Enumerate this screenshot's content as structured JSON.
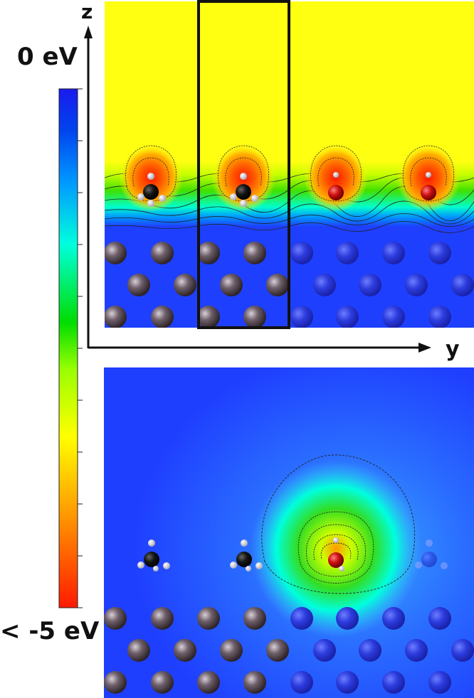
{
  "colorbar": {
    "top_label": "0 eV",
    "bottom_label": "< -5 eV",
    "colors": [
      "#ff1a00",
      "#ff9900",
      "#ffff00",
      "#99ff00",
      "#00dd00",
      "#00ffdd",
      "#0099ff",
      "#0044ee",
      "#1a1aee"
    ]
  },
  "axes": {
    "z_label": "z",
    "y_label": "y"
  },
  "colors": {
    "slab_blue": "#1f3fff",
    "vacuum_yellow": "#ffff12",
    "frame": "#111111"
  },
  "top_panel": {
    "molecules": [
      {
        "type": "methanium",
        "heavy_atom": "C"
      },
      {
        "type": "methanium",
        "heavy_atom": "C"
      },
      {
        "type": "water",
        "heavy_atom": "O"
      },
      {
        "type": "water",
        "heavy_atom": "O"
      }
    ]
  },
  "bottom_panel": {
    "molecules": [
      {
        "type": "methanium",
        "heavy_atom": "C"
      },
      {
        "type": "methanium",
        "heavy_atom": "C"
      },
      {
        "type": "water",
        "heavy_atom": "O"
      },
      {
        "type": "methanium",
        "heavy_atom": "C",
        "faded": true
      }
    ]
  }
}
